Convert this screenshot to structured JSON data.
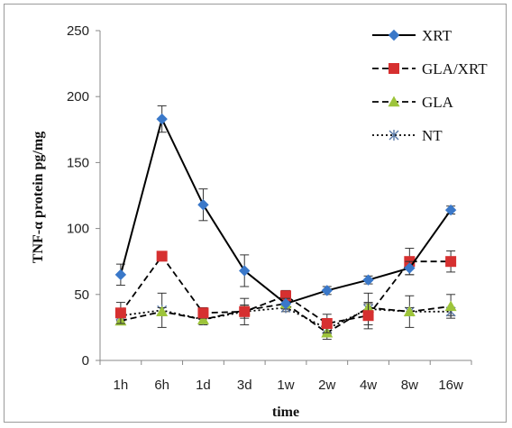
{
  "chart_data": {
    "type": "line",
    "title": "",
    "xlabel": "time",
    "ylabel": "TNF-α protein pg/mg",
    "categories": [
      "1h",
      "6h",
      "1d",
      "3d",
      "1w",
      "2w",
      "4w",
      "8w",
      "16w"
    ],
    "ylim": [
      0,
      250
    ],
    "yticks": [
      0,
      50,
      100,
      150,
      200,
      250
    ],
    "grid": false,
    "legend_position": "top-right",
    "series": [
      {
        "name": "XRT",
        "values": [
          65,
          183,
          118,
          68,
          43,
          53,
          61,
          70,
          114
        ],
        "errors": [
          8,
          10,
          12,
          12,
          4,
          3,
          3,
          5,
          3
        ],
        "color": "#3a78c9",
        "line": "solid",
        "marker": "diamond"
      },
      {
        "name": "GLA/XRT",
        "values": [
          36,
          79,
          36,
          37,
          49,
          28,
          34,
          75,
          75
        ],
        "errors": [
          8,
          3,
          4,
          5,
          4,
          7,
          10,
          10,
          8
        ],
        "color": "#d63030",
        "line": "dashed",
        "marker": "square"
      },
      {
        "name": "GLA",
        "values": [
          30,
          37,
          31,
          38,
          43,
          21,
          40,
          37,
          41
        ],
        "errors": [
          3,
          3,
          3,
          3,
          3,
          5,
          3,
          3,
          9
        ],
        "color": "#9dc43a",
        "line": "dashed",
        "marker": "triangle"
      },
      {
        "name": "NT",
        "values": [
          34,
          38,
          31,
          37,
          40,
          24,
          39,
          37,
          37
        ],
        "errors": [
          4,
          13,
          4,
          10,
          3,
          4,
          12,
          12,
          3
        ],
        "color": "#5a7aa8",
        "line": "dotted",
        "marker": "star"
      }
    ]
  }
}
